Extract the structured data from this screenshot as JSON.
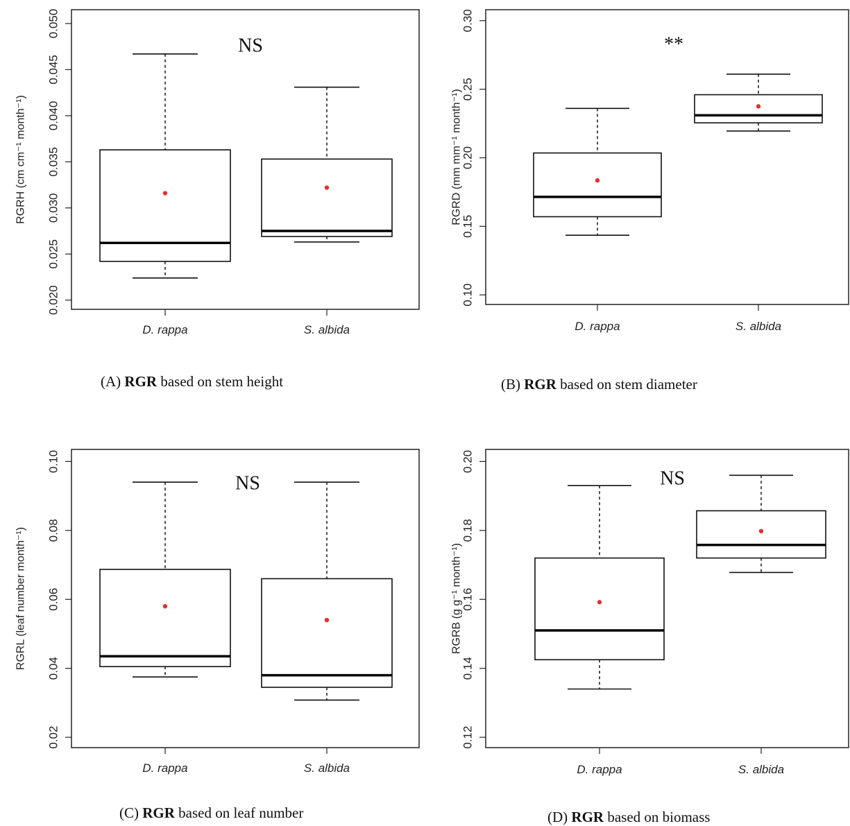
{
  "chart_data": [
    {
      "panel": "A",
      "type": "box",
      "ylabel": "RGRH (cm cm⁻¹ month⁻¹)",
      "ylim": [
        0.019,
        0.0515
      ],
      "yticks": [
        0.02,
        0.025,
        0.03,
        0.035,
        0.04,
        0.045,
        0.05
      ],
      "yticklabels": [
        "0.020",
        "0.025",
        "0.030",
        "0.035",
        "0.040",
        "0.045",
        "0.050"
      ],
      "categories": [
        "D. rappa",
        "S. albida"
      ],
      "boxes": [
        {
          "min": 0.0224,
          "q1": 0.0242,
          "median": 0.0262,
          "q3": 0.0363,
          "max": 0.0467,
          "mean": 0.0316
        },
        {
          "min": 0.0263,
          "q1": 0.0269,
          "median": 0.0275,
          "q3": 0.0353,
          "max": 0.0431,
          "mean": 0.0322
        }
      ],
      "annotation": "NS",
      "caption": {
        "prefix": "(A) ",
        "bold": "RGR",
        "rest": " based on stem height"
      }
    },
    {
      "panel": "B",
      "type": "box",
      "ylabel": "RGRD (mm mm⁻¹ month⁻¹)",
      "ylim": [
        0.093,
        0.308
      ],
      "yticks": [
        0.1,
        0.15,
        0.2,
        0.25,
        0.3
      ],
      "yticklabels": [
        "0.10",
        "0.15",
        "0.20",
        "0.25",
        "0.30"
      ],
      "categories": [
        "D. rappa",
        "S. albida"
      ],
      "boxes": [
        {
          "min": 0.1435,
          "q1": 0.157,
          "median": 0.1715,
          "q3": 0.2035,
          "max": 0.236,
          "mean": 0.1835
        },
        {
          "min": 0.2195,
          "q1": 0.2255,
          "median": 0.231,
          "q3": 0.246,
          "max": 0.261,
          "mean": 0.2375
        }
      ],
      "annotation": "**",
      "caption": {
        "prefix": "(B) ",
        "bold": "RGR",
        "rest": " based on stem diameter"
      }
    },
    {
      "panel": "C",
      "type": "box",
      "ylabel": "RGRL (leaf number month⁻¹)",
      "ylim": [
        0.017,
        0.1035
      ],
      "yticks": [
        0.02,
        0.04,
        0.06,
        0.08,
        0.1
      ],
      "yticklabels": [
        "0.02",
        "0.04",
        "0.06",
        "0.08",
        "0.10"
      ],
      "categories": [
        "D. rappa",
        "S. albida"
      ],
      "boxes": [
        {
          "min": 0.0375,
          "q1": 0.0405,
          "median": 0.0435,
          "q3": 0.0687,
          "max": 0.094,
          "mean": 0.058
        },
        {
          "min": 0.0308,
          "q1": 0.0345,
          "median": 0.038,
          "q3": 0.066,
          "max": 0.094,
          "mean": 0.054
        }
      ],
      "annotation": "NS",
      "caption": {
        "prefix": "(C) ",
        "bold": "RGR",
        "rest": " based on leaf number"
      }
    },
    {
      "panel": "D",
      "type": "box",
      "ylabel": "RGRB (g g⁻¹ month⁻¹)",
      "ylim": [
        0.117,
        0.2035
      ],
      "yticks": [
        0.12,
        0.14,
        0.16,
        0.18,
        0.2
      ],
      "yticklabels": [
        "0.12",
        "0.14",
        "0.16",
        "0.18",
        "0.20"
      ],
      "categories": [
        "D. rappa",
        "S. albida"
      ],
      "boxes": [
        {
          "min": 0.134,
          "q1": 0.1425,
          "median": 0.151,
          "q3": 0.172,
          "max": 0.193,
          "mean": 0.1592
        },
        {
          "min": 0.1678,
          "q1": 0.172,
          "median": 0.1758,
          "q3": 0.1857,
          "max": 0.196,
          "mean": 0.1798
        }
      ],
      "annotation": "NS",
      "caption": {
        "prefix": "(D) ",
        "bold": "RGR",
        "rest": " based on biomass"
      }
    }
  ],
  "colors": {
    "box_stroke": "#111111",
    "median": "#000000",
    "mean_point": "#e53030",
    "frame": "#222222"
  }
}
